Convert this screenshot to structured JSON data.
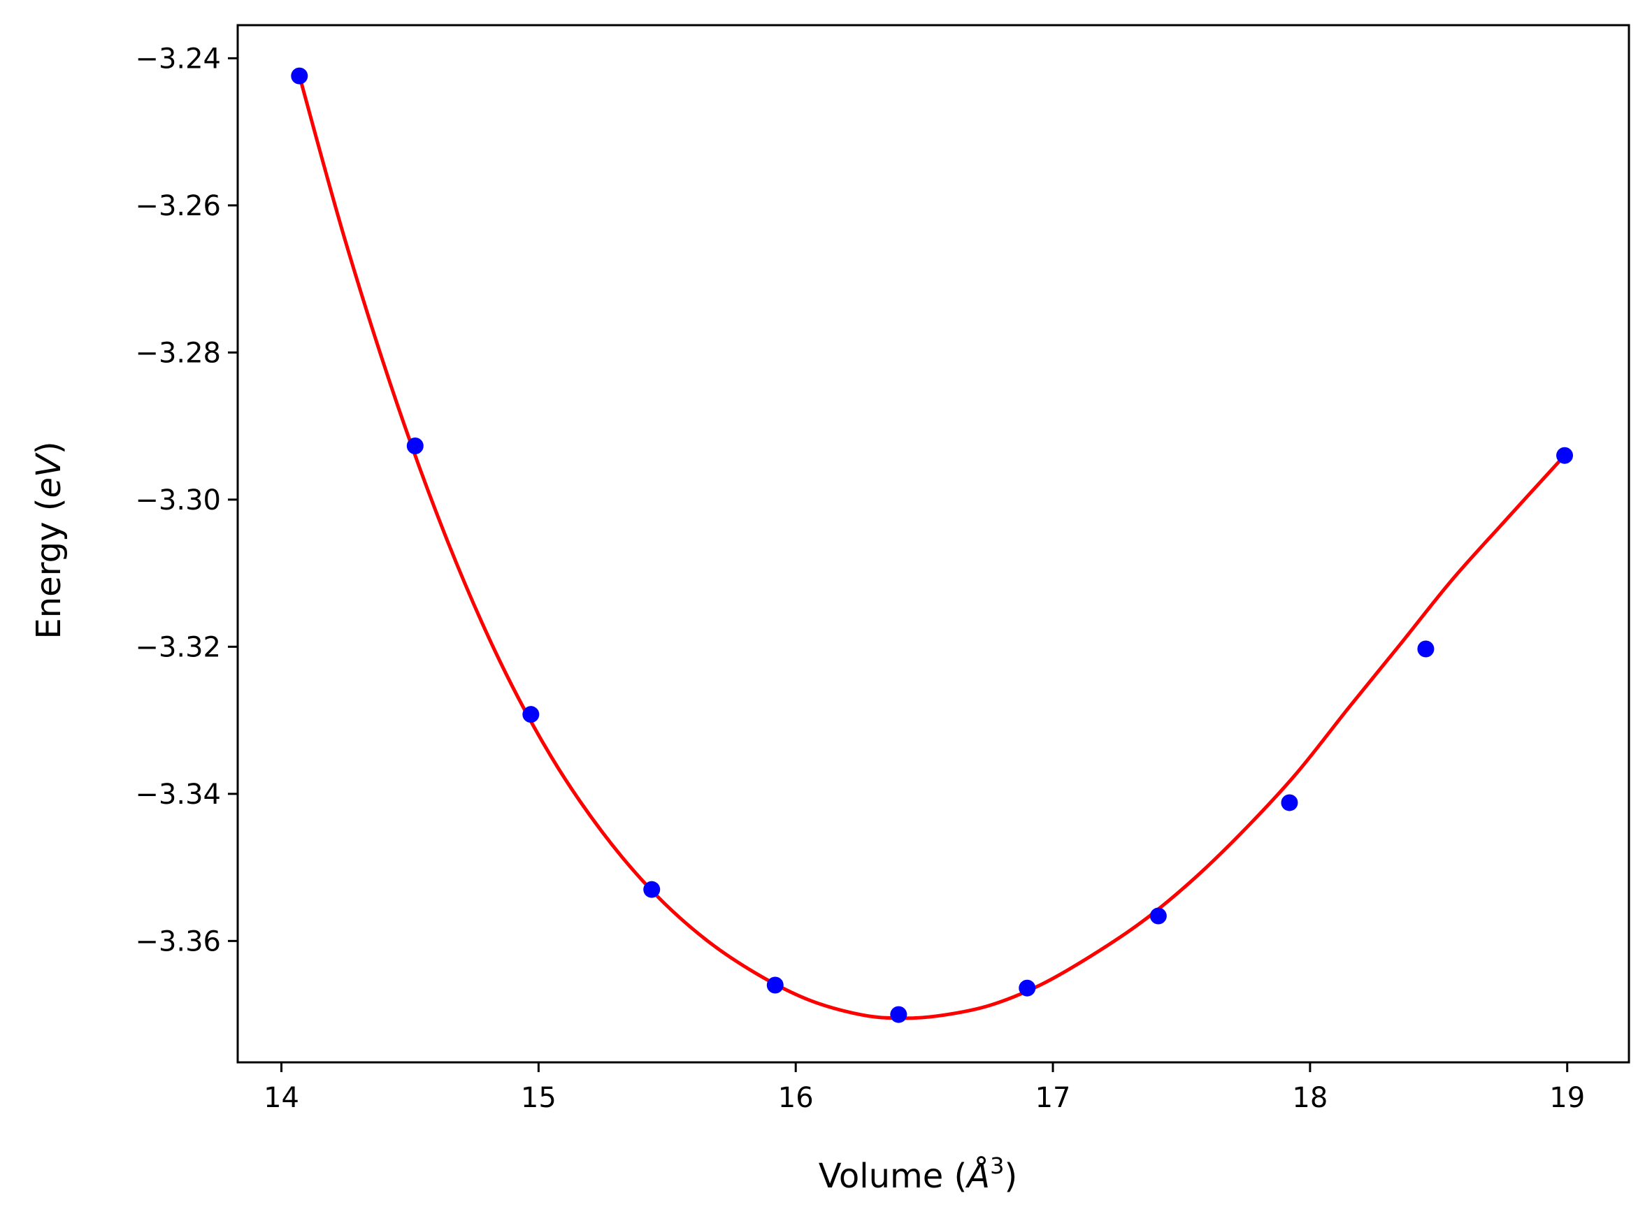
{
  "chart_data": {
    "type": "line",
    "xlabel": "Volume (",
    "xlabel_symbol": "Å",
    "xlabel_exp": "3",
    "xlabel_close": ")",
    "ylabel": "Energy (",
    "ylabel_unit": "eV",
    "ylabel_close": ")",
    "xlim": [
      13.83,
      19.24
    ],
    "ylim": [
      -3.3765,
      -3.2355
    ],
    "xticks": [
      14,
      15,
      16,
      17,
      18,
      19
    ],
    "xtick_labels": [
      "14",
      "15",
      "16",
      "17",
      "18",
      "19"
    ],
    "yticks": [
      -3.36,
      -3.34,
      -3.32,
      -3.3,
      -3.28,
      -3.26,
      -3.24
    ],
    "ytick_labels": [
      "−3.36",
      "−3.34",
      "−3.32",
      "−3.30",
      "−3.28",
      "−3.26",
      "−3.24"
    ],
    "grid": false,
    "series": [
      {
        "kind": "scatter",
        "color": "#0000ff",
        "x": [
          14.07,
          14.52,
          14.97,
          15.44,
          15.92,
          16.4,
          16.9,
          17.41,
          17.92,
          18.45,
          18.99
        ],
        "y": [
          -3.2424,
          -3.2927,
          -3.3292,
          -3.353,
          -3.366,
          -3.37,
          -3.3664,
          -3.3566,
          -3.3412,
          -3.3203,
          -3.294
        ]
      },
      {
        "kind": "line",
        "color": "#ff0000",
        "x": [
          14.07,
          14.25,
          14.45,
          14.65,
          14.85,
          15.05,
          15.25,
          15.45,
          15.65,
          15.85,
          16.05,
          16.25,
          16.4,
          16.55,
          16.75,
          16.95,
          17.15,
          17.35,
          17.55,
          17.75,
          17.95,
          18.15,
          18.35,
          18.55,
          18.75,
          18.99
        ],
        "y": [
          -3.2424,
          -3.265,
          -3.287,
          -3.306,
          -3.322,
          -3.335,
          -3.3453,
          -3.3535,
          -3.3598,
          -3.3645,
          -3.368,
          -3.37,
          -3.3705,
          -3.3702,
          -3.3688,
          -3.366,
          -3.362,
          -3.3573,
          -3.3515,
          -3.3447,
          -3.3371,
          -3.3283,
          -3.3197,
          -3.311,
          -3.3032,
          -3.294
        ]
      }
    ]
  }
}
